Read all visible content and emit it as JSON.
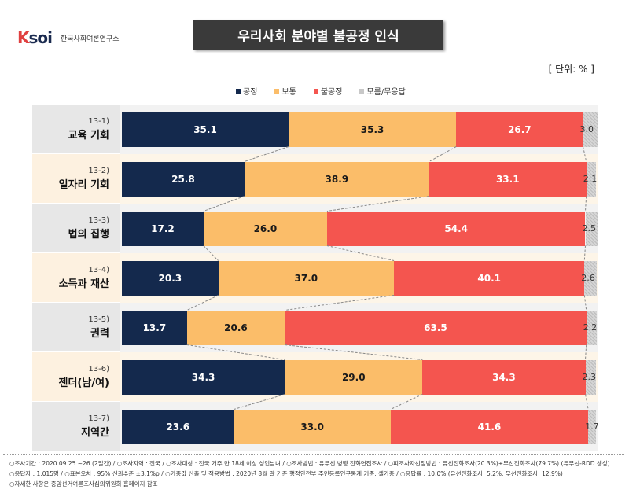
{
  "header": {
    "logo_mark": "KSOI",
    "logo_text": "한국사회여론연구소",
    "title": "우리사회 분야별 불공정 인식",
    "unit": "[ 단위: % ]"
  },
  "colors": {
    "fair": "#14294d",
    "normal": "#fbbd69",
    "unfair": "#f4554f",
    "dontknow": "#c8c8c8"
  },
  "legend": [
    {
      "label": "공정",
      "color": "#14294d"
    },
    {
      "label": "보통",
      "color": "#fbbd69"
    },
    {
      "label": "불공정",
      "color": "#f4554f"
    },
    {
      "label": "모름/무응답",
      "color": "#c8c8c8"
    }
  ],
  "chart_data": {
    "type": "bar",
    "orientation": "horizontal-stacked-100",
    "categories": [
      {
        "num": "13-1)",
        "name": "교육 기회"
      },
      {
        "num": "13-2)",
        "name": "일자리 기회"
      },
      {
        "num": "13-3)",
        "name": "법의 집행"
      },
      {
        "num": "13-4)",
        "name": "소득과 재산"
      },
      {
        "num": "13-5)",
        "name": "권력"
      },
      {
        "num": "13-6)",
        "name": "젠더(남/여)"
      },
      {
        "num": "13-7)",
        "name": "지역간"
      }
    ],
    "series": [
      {
        "name": "공정",
        "values": [
          35.1,
          25.8,
          17.2,
          20.3,
          13.7,
          34.3,
          23.6
        ]
      },
      {
        "name": "보통",
        "values": [
          35.3,
          38.9,
          26.0,
          37.0,
          20.6,
          29.0,
          33.0
        ]
      },
      {
        "name": "불공정",
        "values": [
          26.7,
          33.1,
          54.4,
          40.1,
          63.5,
          34.3,
          41.6
        ]
      },
      {
        "name": "모름/무응답",
        "values": [
          3.0,
          2.1,
          2.5,
          2.6,
          2.2,
          2.3,
          1.7
        ]
      }
    ],
    "xlim": [
      0,
      100
    ]
  },
  "footer": {
    "line1": "○조사기간 : 2020.09.25.~26.(2일간) / ○조사지역 : 전국 / ○조사대상 : 전국 거주 만 18세 이상 성인남녀 / ○조사방법 : 유무선 병행 전화면접조사 / ○피조사자선정방법 : 유선전화조사(20.3%)+무선전화조사(79.7%) (유무선-RDD 생성)",
    "line2": "○응답자 : 1,015명 / ○표본오차 : 95% 신뢰수준 ±3.1%p / ○가중값 산출 및 적용방법 : 2020년 8월 말 기준 행정안전부 주민등록인구통계 기준, 셀가중 / ○응답률 : 10.0% (유선전화조사: 5.2%, 무선전화조사: 12.9%)",
    "line3": "○자세한 사항은 중앙선거여론조사심의위원회 홈페이지 참조"
  }
}
